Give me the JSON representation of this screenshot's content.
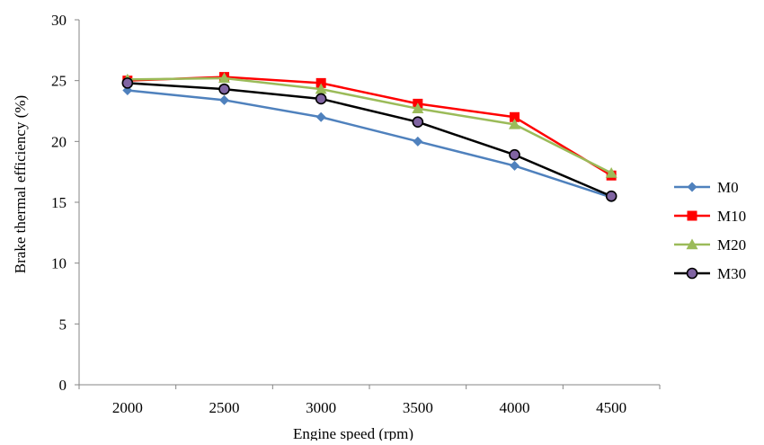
{
  "chart_data": {
    "type": "line",
    "xlabel": "Engine speed (rpm)",
    "ylabel": "Brake thermal efficiency (%)",
    "categories": [
      "2000",
      "2500",
      "3000",
      "3500",
      "4000",
      "4500"
    ],
    "ylim": [
      0,
      30
    ],
    "yticks": [
      "0",
      "5",
      "10",
      "15",
      "20",
      "25",
      "30"
    ],
    "grid": false,
    "legend": "right",
    "series": [
      {
        "name": "M0",
        "values": [
          24.2,
          23.4,
          22.0,
          20.0,
          18.0,
          15.4
        ],
        "color": "#4F81BD",
        "marker": "diamond"
      },
      {
        "name": "M10",
        "values": [
          25.0,
          25.3,
          24.8,
          23.1,
          22.0,
          17.2
        ],
        "color": "#FF0000",
        "marker": "square"
      },
      {
        "name": "M20",
        "values": [
          25.1,
          25.2,
          24.3,
          22.7,
          21.4,
          17.4
        ],
        "color": "#9BBB59",
        "marker": "triangle"
      },
      {
        "name": "M30",
        "values": [
          24.8,
          24.3,
          23.5,
          21.6,
          18.9,
          15.5
        ],
        "color": "#000000",
        "marker": "circle",
        "marker_fill": "#8064A2"
      }
    ]
  }
}
